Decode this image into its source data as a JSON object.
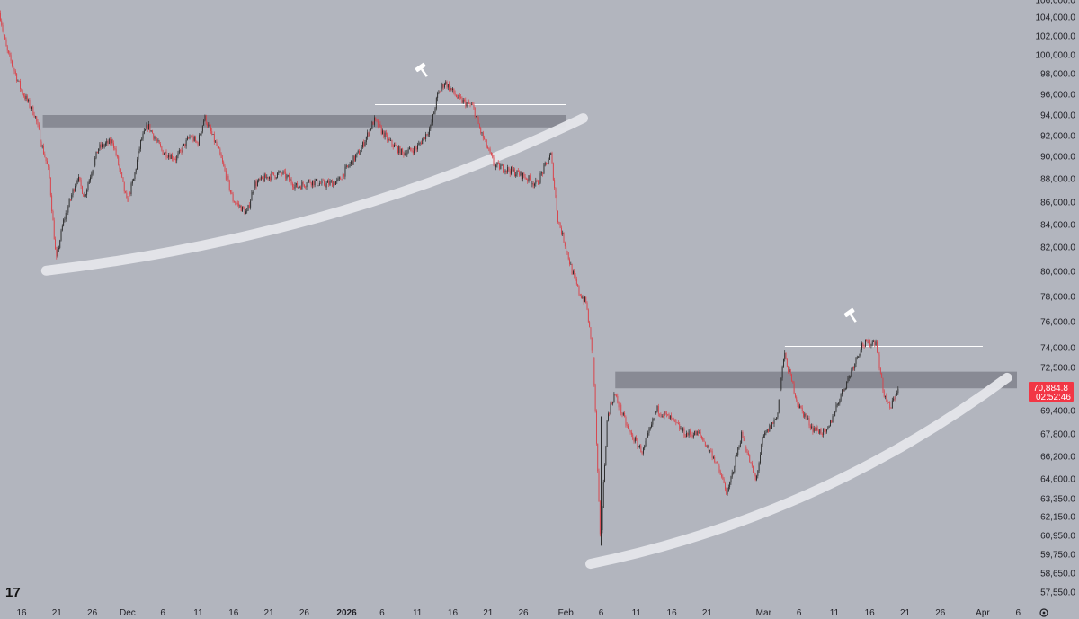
{
  "chart_data": {
    "type": "candlestick",
    "y_axis": {
      "position": "right",
      "ticks": [
        "57,550.0",
        "58,650.0",
        "59,750.0",
        "60,950.0",
        "62,150.0",
        "63,350.0",
        "64,600.0",
        "66,200.0",
        "67,800.0",
        "69,400.0",
        "72,500.0",
        "74,000.0",
        "76,000.0",
        "78,000.0",
        "80,000.0",
        "82,000.0",
        "84,000.0",
        "86,000.0",
        "88,000.0",
        "90,000.0",
        "92,000.0",
        "94,000.0",
        "96,000.0",
        "98,000.0",
        "100,000.0",
        "102,000.0",
        "104,000.0",
        "106,000.0"
      ]
    },
    "x_axis": {
      "ticks": [
        {
          "label": "16",
          "bold": false
        },
        {
          "label": "21",
          "bold": false
        },
        {
          "label": "26",
          "bold": false
        },
        {
          "label": "Dec",
          "bold": false
        },
        {
          "label": "6",
          "bold": false
        },
        {
          "label": "11",
          "bold": false
        },
        {
          "label": "16",
          "bold": false
        },
        {
          "label": "21",
          "bold": false
        },
        {
          "label": "26",
          "bold": false
        },
        {
          "label": "2026",
          "bold": true
        },
        {
          "label": "6",
          "bold": false
        },
        {
          "label": "11",
          "bold": false
        },
        {
          "label": "16",
          "bold": false
        },
        {
          "label": "21",
          "bold": false
        },
        {
          "label": "26",
          "bold": false
        },
        {
          "label": "Feb",
          "bold": false
        },
        {
          "label": "6",
          "bold": false
        },
        {
          "label": "11",
          "bold": false
        },
        {
          "label": "16",
          "bold": false
        },
        {
          "label": "21",
          "bold": false
        },
        {
          "label": "Mar",
          "bold": false
        },
        {
          "label": "6",
          "bold": false
        },
        {
          "label": "11",
          "bold": false
        },
        {
          "label": "16",
          "bold": false
        },
        {
          "label": "21",
          "bold": false
        },
        {
          "label": "26",
          "bold": false
        },
        {
          "label": "Apr",
          "bold": false
        },
        {
          "label": "6",
          "bold": false
        }
      ]
    },
    "price_path": [
      [
        "Nov 13",
        104500
      ],
      [
        "Nov 14",
        100500
      ],
      [
        "Nov 16",
        96500
      ],
      [
        "Nov 18",
        94000
      ],
      [
        "Nov 19",
        91000
      ],
      [
        "Nov 20",
        88500
      ],
      [
        "Nov 21",
        80800
      ],
      [
        "Nov 22",
        84200
      ],
      [
        "Nov 24",
        88200
      ],
      [
        "Nov 25",
        86500
      ],
      [
        "Nov 27",
        90800
      ],
      [
        "Nov 29",
        91500
      ],
      [
        "Dec 1",
        86000
      ],
      [
        "Dec 2",
        88000
      ],
      [
        "Dec 3",
        91500
      ],
      [
        "Dec 4",
        93000
      ],
      [
        "Dec 6",
        90500
      ],
      [
        "Dec 8",
        89800
      ],
      [
        "Dec 10",
        92000
      ],
      [
        "Dec 11",
        91200
      ],
      [
        "Dec 12",
        93800
      ],
      [
        "Dec 14",
        90500
      ],
      [
        "Dec 16",
        86200
      ],
      [
        "Dec 18",
        85000
      ],
      [
        "Dec 19",
        87500
      ],
      [
        "Dec 21",
        88200
      ],
      [
        "Dec 23",
        88500
      ],
      [
        "Dec 25",
        87300
      ],
      [
        "Dec 27",
        87800
      ],
      [
        "Dec 29",
        87500
      ],
      [
        "Dec 31",
        87800
      ],
      [
        "Jan 1",
        88800
      ],
      [
        "Jan 3",
        90500
      ],
      [
        "Jan 5",
        93500
      ],
      [
        "Jan 7",
        91500
      ],
      [
        "Jan 9",
        90300
      ],
      [
        "Jan 11",
        90800
      ],
      [
        "Jan 13",
        92800
      ],
      [
        "Jan 14",
        96000
      ],
      [
        "Jan 15",
        97200
      ],
      [
        "Jan 17",
        95500
      ],
      [
        "Jan 19",
        94800
      ],
      [
        "Jan 20",
        92500
      ],
      [
        "Jan 22",
        89200
      ],
      [
        "Jan 24",
        88800
      ],
      [
        "Jan 26",
        88300
      ],
      [
        "Jan 28",
        87500
      ],
      [
        "Jan 30",
        90200
      ],
      [
        "Jan 31",
        84500
      ],
      [
        "Feb 2",
        80000
      ],
      [
        "Feb 3",
        78300
      ],
      [
        "Feb 4",
        77500
      ],
      [
        "Feb 5",
        73000
      ],
      [
        "Feb 6",
        60300
      ],
      [
        "Feb 7",
        69000
      ],
      [
        "Feb 8",
        70600
      ],
      [
        "Feb 10",
        68000
      ],
      [
        "Feb 12",
        66500
      ],
      [
        "Feb 14",
        69500
      ],
      [
        "Feb 16",
        68800
      ],
      [
        "Feb 18",
        67800
      ],
      [
        "Feb 20",
        67800
      ],
      [
        "Feb 22",
        66200
      ],
      [
        "Feb 24",
        63600
      ],
      [
        "Feb 26",
        67800
      ],
      [
        "Feb 28",
        64400
      ],
      [
        "Mar 1",
        67500
      ],
      [
        "Mar 3",
        69000
      ],
      [
        "Mar 4",
        73500
      ],
      [
        "Mar 6",
        69800
      ],
      [
        "Mar 8",
        68200
      ],
      [
        "Mar 10",
        67800
      ],
      [
        "Mar 12",
        70500
      ],
      [
        "Mar 13",
        71600
      ],
      [
        "Mar 15",
        74200
      ],
      [
        "Mar 17",
        74500
      ],
      [
        "Mar 18",
        70800
      ],
      [
        "Mar 19",
        69500
      ],
      [
        "Mar 20",
        70884
      ]
    ],
    "annotations": [
      {
        "type": "rising-trendline",
        "from": [
          "Nov 21",
          80200
        ],
        "to": [
          "Jan 30",
          93600
        ]
      },
      {
        "type": "rising-trendline",
        "from": [
          "Feb 6",
          59300
        ],
        "to": [
          "Mar 31",
          71700
        ]
      },
      {
        "type": "resistance-zone",
        "from": "Nov 19",
        "to": "Feb 1",
        "low": 92800,
        "high": 94000
      },
      {
        "type": "resistance-zone",
        "from": "Feb 8",
        "to": "Apr 9",
        "low": 71000,
        "high": 72200
      },
      {
        "type": "level-line",
        "from": "Jan 5",
        "to": "Feb 1",
        "price": 95000
      },
      {
        "type": "level-line",
        "from": "Mar 4",
        "to": "Apr 1",
        "price": 74100
      }
    ],
    "last_price": {
      "value": "70,884.8",
      "countdown": "02:52:46",
      "color": "#f23645"
    },
    "colors": {
      "up": "#2b2b2b",
      "down": "#d9434a",
      "background": "#b2b5be",
      "trendline": "#e5e6ea",
      "zone": "#797c85",
      "level": "#ffffff"
    }
  }
}
